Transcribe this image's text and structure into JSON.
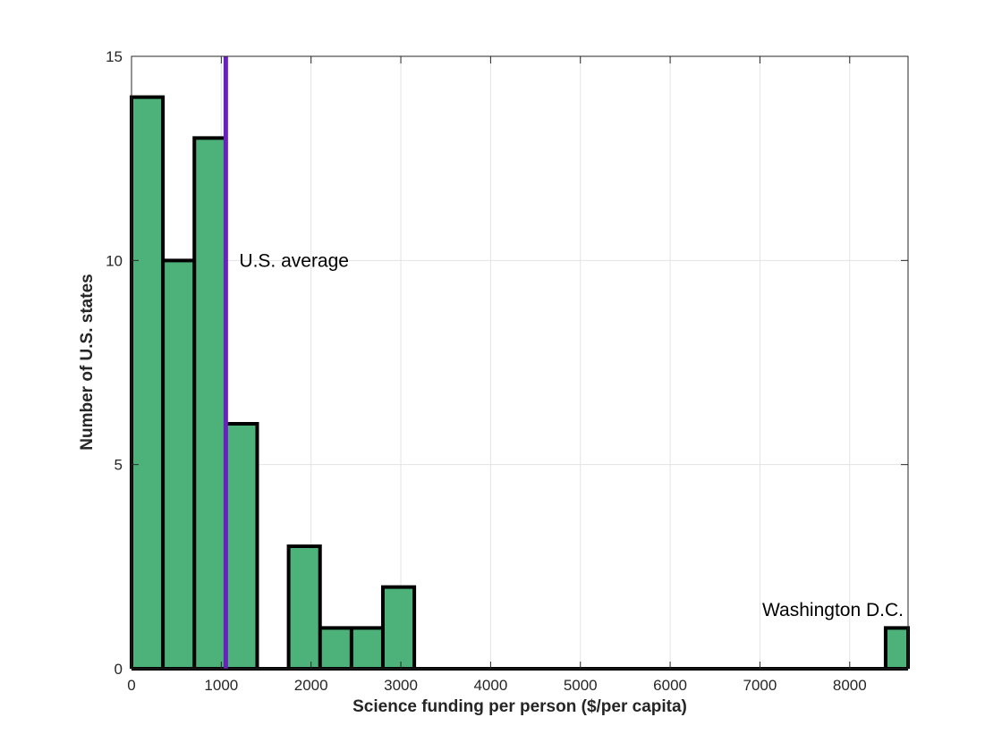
{
  "chart_data": {
    "type": "bar",
    "subtype": "histogram",
    "title": "",
    "xlabel": "Science funding per person ($/per capita)",
    "ylabel": "Number of U.S. states",
    "xlim": [
      0,
      8650
    ],
    "ylim": [
      0,
      15
    ],
    "xticks": [
      "0",
      "1000",
      "2000",
      "3000",
      "4000",
      "5000",
      "6000",
      "7000",
      "8000"
    ],
    "xtick_values": [
      0,
      1000,
      2000,
      3000,
      4000,
      5000,
      6000,
      7000,
      8000
    ],
    "yticks": [
      "0",
      "5",
      "10",
      "15"
    ],
    "ytick_values": [
      0,
      5,
      10,
      15
    ],
    "grid": true,
    "bin_width": 350,
    "bin_edges": [
      0,
      350,
      700,
      1050,
      1400,
      1750,
      2100,
      2450,
      2800,
      3150,
      3500,
      3850,
      4200,
      4550,
      4900,
      5250,
      5600,
      5950,
      6300,
      6650,
      7000,
      7350,
      7700,
      8050,
      8400,
      8650
    ],
    "counts": [
      14,
      10,
      13,
      6,
      0,
      3,
      1,
      1,
      2,
      0,
      0,
      0,
      0,
      0,
      0,
      0,
      0,
      0,
      0,
      0,
      0,
      0,
      0,
      0,
      1
    ],
    "bar_color": "#4db27a",
    "edge_color": "#000000",
    "average_line": {
      "x": 1050,
      "color": "#6a1fbf"
    },
    "annotations": [
      {
        "text": "U.S. average",
        "x": 1200,
        "y": 10,
        "anchor": "start"
      },
      {
        "text": "Washington D.C.",
        "x": 8600,
        "y": 1.45,
        "anchor": "end"
      }
    ]
  }
}
